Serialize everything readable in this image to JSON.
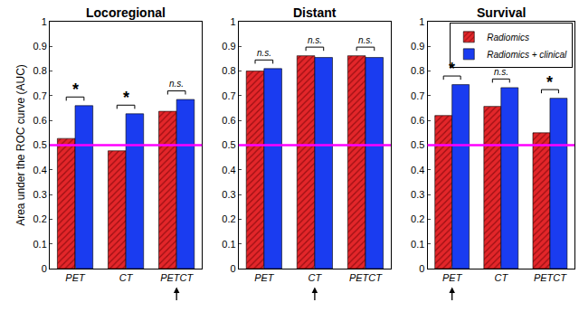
{
  "chart_data": [
    {
      "type": "bar",
      "title": "Locoregional",
      "y_label": "Area under the ROC curve (AUC)",
      "categories": [
        "PET",
        "CT",
        "PETCT"
      ],
      "series": [
        {
          "name": "Radiomics",
          "color": "#e3262a",
          "marker": "hatch",
          "values": [
            0.527,
            0.477,
            0.637
          ]
        },
        {
          "name": "Radiomics + clinical",
          "color": "#1a3cf0",
          "values": [
            0.66,
            0.627,
            0.685
          ]
        }
      ],
      "ylim": [
        0,
        1
      ],
      "yticks": [
        0,
        0.1,
        0.2,
        0.3,
        0.4,
        0.5,
        0.6,
        0.7,
        0.8,
        0.9,
        1
      ],
      "reference_line": {
        "value": 0.5,
        "color": "#ff00ff"
      },
      "annotations": [
        {
          "x": "PET",
          "text": "*"
        },
        {
          "x": "CT",
          "text": "*"
        },
        {
          "x": "PETCT",
          "text": "n.s."
        }
      ],
      "arrow": "PETCT"
    },
    {
      "type": "bar",
      "title": "Distant",
      "categories": [
        "PET",
        "CT",
        "PETCT"
      ],
      "series": [
        {
          "name": "Radiomics",
          "color": "#e3262a",
          "marker": "hatch",
          "values": [
            0.8,
            0.862,
            0.862
          ]
        },
        {
          "name": "Radiomics + clinical",
          "color": "#1a3cf0",
          "values": [
            0.81,
            0.855,
            0.855
          ]
        }
      ],
      "ylim": [
        0,
        1
      ],
      "yticks": [
        0,
        0.1,
        0.2,
        0.3,
        0.4,
        0.5,
        0.6,
        0.7,
        0.8,
        0.9,
        1
      ],
      "reference_line": {
        "value": 0.5,
        "color": "#ff00ff"
      },
      "annotations": [
        {
          "x": "PET",
          "text": "n.s."
        },
        {
          "x": "CT",
          "text": "n.s."
        },
        {
          "x": "PETCT",
          "text": "n.s."
        }
      ],
      "arrow": "CT"
    },
    {
      "type": "bar",
      "title": "Survival",
      "legend": "upper right",
      "categories": [
        "PET",
        "CT",
        "PETCT"
      ],
      "series": [
        {
          "name": "Radiomics",
          "color": "#e3262a",
          "marker": "hatch",
          "values": [
            0.62,
            0.657,
            0.55
          ]
        },
        {
          "name": "Radiomics + clinical",
          "color": "#1a3cf0",
          "values": [
            0.745,
            0.733,
            0.69
          ]
        }
      ],
      "ylim": [
        0,
        1
      ],
      "yticks": [
        0,
        0.1,
        0.2,
        0.3,
        0.4,
        0.5,
        0.6,
        0.7,
        0.8,
        0.9,
        1
      ],
      "reference_line": {
        "value": 0.5,
        "color": "#ff00ff"
      },
      "annotations": [
        {
          "x": "PET",
          "text": "*"
        },
        {
          "x": "CT",
          "text": "n.s."
        },
        {
          "x": "PETCT",
          "text": "*"
        }
      ],
      "arrow": "PET"
    }
  ]
}
